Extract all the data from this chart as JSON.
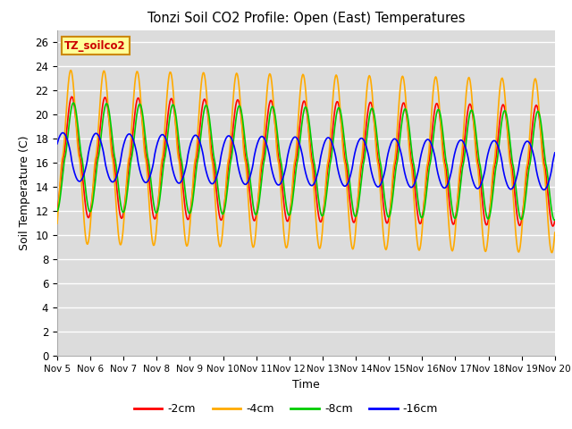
{
  "title": "Tonzi Soil CO2 Profile: Open (East) Temperatures",
  "xlabel": "Time",
  "ylabel": "Soil Temperature (C)",
  "ylim": [
    0,
    27
  ],
  "yticks": [
    0,
    2,
    4,
    6,
    8,
    10,
    12,
    14,
    16,
    18,
    20,
    22,
    24,
    26
  ],
  "xtick_labels": [
    "Nov 5",
    "Nov 6",
    "Nov 7",
    "Nov 8",
    "Nov 9",
    "Nov 10",
    "Nov 11",
    "Nov 12",
    "Nov 13",
    "Nov 14",
    "Nov 15",
    "Nov 16",
    "Nov 17",
    "Nov 18",
    "Nov 19",
    "Nov 20"
  ],
  "legend_labels": [
    "-2cm",
    "-4cm",
    "-8cm",
    "-16cm"
  ],
  "legend_colors": [
    "#ff0000",
    "#ffaa00",
    "#00cc00",
    "#0000ff"
  ],
  "bg_color": "#dcdcdc",
  "annotation_text": "TZ_soilco2",
  "annotation_bg": "#ffff99",
  "annotation_border": "#cc8800",
  "annotation_text_color": "#cc0000",
  "n_days": 15,
  "base_mean": 16.5,
  "base_decline": 0.05,
  "amp_2cm": 5.0,
  "amp_4cm": 7.2,
  "amp_8cm": 4.5,
  "amp_16cm": 2.0,
  "phase_2cm": -1.2,
  "phase_4cm": -1.0,
  "phase_8cm": -1.5,
  "phase_16cm": 0.5
}
